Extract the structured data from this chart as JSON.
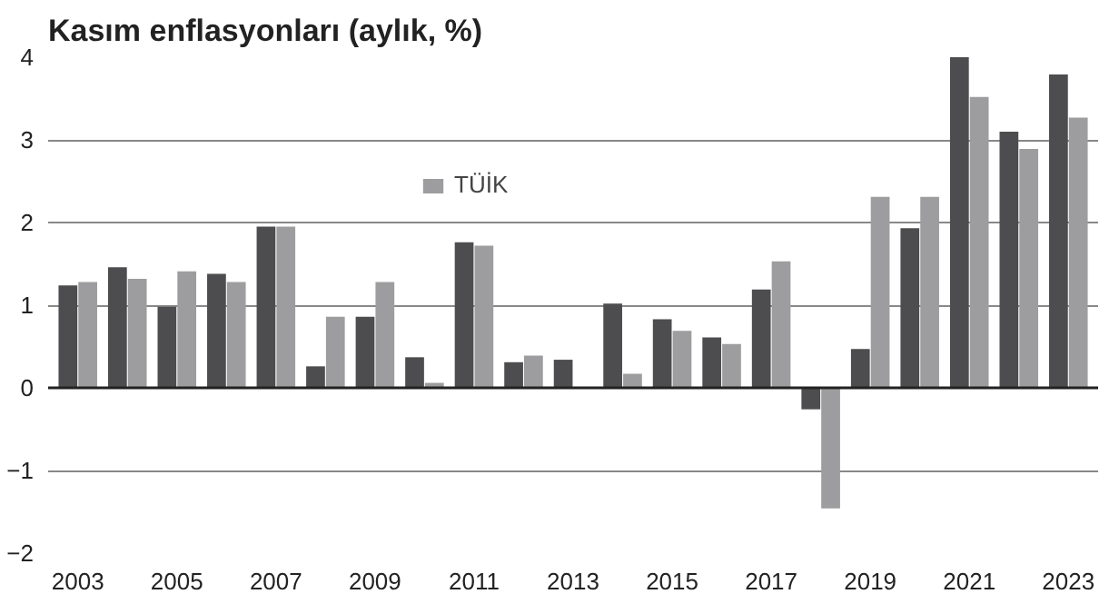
{
  "chart_data": {
    "type": "bar",
    "title": "Kasım enflasyonları",
    "subtitle": "(aylık, %)",
    "categories": [
      "2003",
      null,
      "2005",
      null,
      "2007",
      null,
      "2009",
      null,
      "2011",
      null,
      "2013",
      null,
      "2015",
      null,
      "2017",
      null,
      "2019",
      null,
      "2021",
      null,
      "2023"
    ],
    "series": [
      {
        "color": "#4d4d4f",
        "values": [
          1.24,
          1.46,
          0.98,
          1.38,
          1.95,
          0.26,
          0.86,
          0.37,
          1.76,
          0.31,
          0.34,
          1.02,
          0.83,
          0.61,
          1.19,
          -0.26,
          0.47,
          1.93,
          4.0,
          3.1,
          3.79
        ]
      },
      {
        "name": "TÜİK",
        "color": "#9d9d9f",
        "values": [
          1.28,
          1.32,
          1.41,
          1.28,
          1.95,
          0.86,
          1.28,
          0.06,
          1.72,
          0.39,
          0.0,
          0.17,
          0.69,
          0.53,
          1.53,
          -1.46,
          2.31,
          2.31,
          3.52,
          2.89,
          3.27
        ]
      }
    ],
    "ylim": [
      -2,
      4
    ],
    "yticks": [
      -2,
      -1,
      0,
      1,
      2,
      3,
      4
    ],
    "grid": "y",
    "legend": "top"
  }
}
